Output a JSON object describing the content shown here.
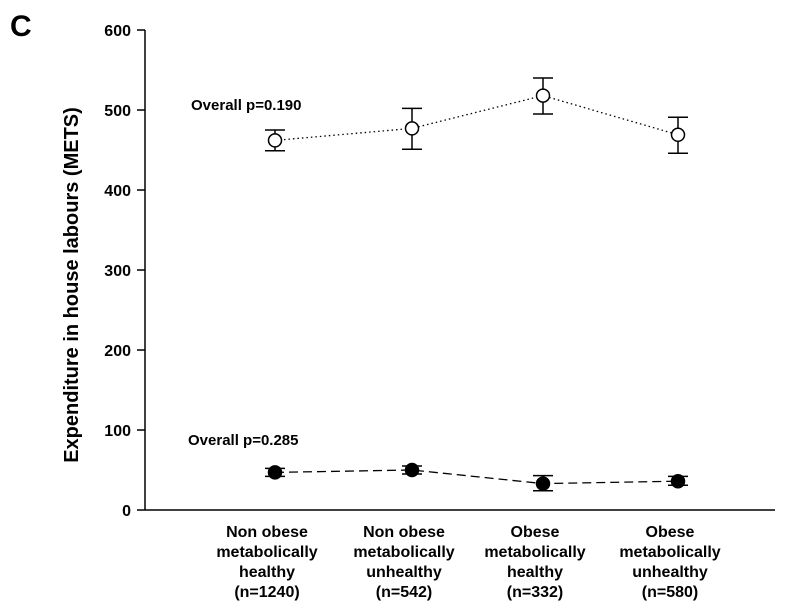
{
  "panel_label": "C",
  "chart_data": {
    "type": "line",
    "title": "",
    "xlabel": "",
    "ylabel": "Expenditure in house labours (METS)",
    "ylim": [
      0,
      600
    ],
    "yticks": [
      0,
      100,
      200,
      300,
      400,
      500,
      600
    ],
    "grid": false,
    "categories": [
      [
        "Non obese",
        "metabolically",
        "healthy",
        "(n=1240)"
      ],
      [
        "Non obese",
        "metabolically",
        "unhealthy",
        "(n=542)"
      ],
      [
        "Obese",
        "metabolically",
        "healthy",
        "(n=332)"
      ],
      [
        "Obese",
        "metabolically",
        "unhealthy",
        "(n=580)"
      ]
    ],
    "series": [
      {
        "marker": "open-circle",
        "line_style": "dotted",
        "values": [
          462,
          477,
          518,
          469
        ],
        "error_low": [
          449,
          451,
          495,
          446
        ],
        "error_high": [
          475,
          502,
          540,
          491
        ]
      },
      {
        "marker": "filled-circle",
        "line_style": "dashed",
        "values": [
          47,
          50,
          33,
          36
        ],
        "error_low": [
          42,
          45,
          24,
          31
        ],
        "error_high": [
          52,
          55,
          43,
          42
        ]
      }
    ],
    "annotations": [
      {
        "text": "Overall p=0.190"
      },
      {
        "text": "Overall p=0.285"
      }
    ]
  }
}
